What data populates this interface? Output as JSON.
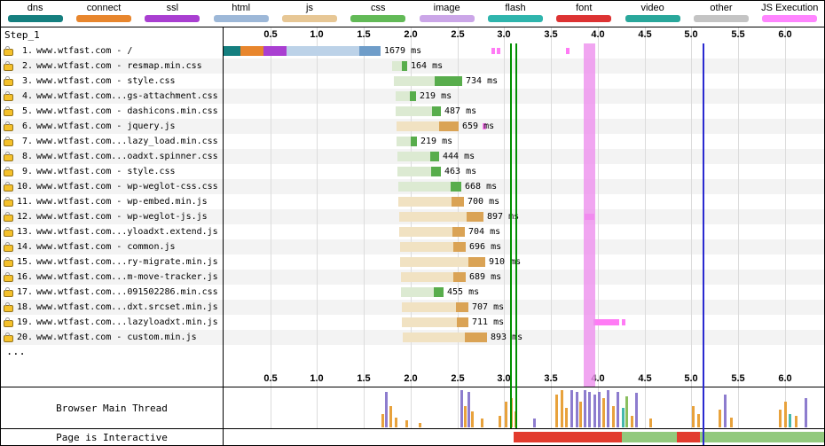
{
  "legend": {
    "items": [
      {
        "label": "dns",
        "color": "#157f7f"
      },
      {
        "label": "connect",
        "color": "#e8862d"
      },
      {
        "label": "ssl",
        "color": "#a93fd1"
      },
      {
        "label": "html",
        "color": "#9db8d8"
      },
      {
        "label": "js",
        "color": "#e7c795"
      },
      {
        "label": "css",
        "color": "#62ba57"
      },
      {
        "label": "image",
        "color": "#cba6e8"
      },
      {
        "label": "flash",
        "color": "#2fb5ad"
      },
      {
        "label": "font",
        "color": "#dd3333"
      },
      {
        "label": "video",
        "color": "#29a79b"
      },
      {
        "label": "other",
        "color": "#c4c4c4"
      },
      {
        "label": "JS Execution",
        "color": "#ff85ff"
      }
    ]
  },
  "step_label": "Step_1",
  "ellipsis_label": "...",
  "timescale_ticks": [
    "0.5",
    "1.0",
    "1.5",
    "2.0",
    "2.5",
    "3.0",
    "3.5",
    "4.0",
    "4.5",
    "5.0",
    "5.5",
    "6.0"
  ],
  "chart_data": {
    "type": "waterfall",
    "time_axis": {
      "unit": "seconds",
      "min": 0,
      "max": 6.42,
      "tick_interval": 0.5
    },
    "palette": {
      "dns": "#157f7f",
      "connect": "#e8862d",
      "ssl": "#a93fd1",
      "html_wait": "#bcd2e8",
      "html_dl": "#6f9dc9",
      "css_wait": "#dcead2",
      "css_dl": "#58ad4c",
      "js_wait": "#f1e2c2",
      "js_dl": "#daa355",
      "js_exec": "#ff7bf5"
    },
    "events": {
      "start_render_lines": [
        3.06,
        3.12
      ],
      "start_render_color": "#008f00",
      "dom_content_loaded_band": {
        "start": 3.85,
        "end": 3.97,
        "color": "#ee90ee"
      },
      "on_load_line": 5.12,
      "on_load_color": "#2a2ad0"
    },
    "requests": [
      {
        "num": "1.",
        "url": "www.wtfast.com - /",
        "duration": "1679 ms",
        "end": 1.679,
        "segments": [
          [
            0.0,
            0.18,
            "dns"
          ],
          [
            0.18,
            0.43,
            "connect"
          ],
          [
            0.43,
            0.67,
            "ssl"
          ],
          [
            0.67,
            1.45,
            "html_wait"
          ],
          [
            1.45,
            1.679,
            "html_dl"
          ]
        ],
        "js_exec": [
          [
            2.86,
            2.9
          ],
          [
            2.92,
            2.96
          ],
          [
            3.66,
            3.7
          ]
        ]
      },
      {
        "num": "2.",
        "url": "www.wtfast.com - resmap.min.css",
        "duration": "164 ms",
        "type": "css",
        "start": 1.8,
        "dl": 1.91,
        "end": 1.964
      },
      {
        "num": "3.",
        "url": "www.wtfast.com - style.css",
        "duration": "734 ms",
        "type": "css",
        "start": 1.82,
        "dl": 2.26,
        "end": 2.554
      },
      {
        "num": "4.",
        "url": "www.wtfast.com...gs-attachment.css",
        "duration": "219 ms",
        "type": "css",
        "start": 1.84,
        "dl": 1.99,
        "end": 2.059
      },
      {
        "num": "5.",
        "url": "www.wtfast.com - dashicons.min.css",
        "duration": "487 ms",
        "type": "css",
        "start": 1.84,
        "dl": 2.23,
        "end": 2.327
      },
      {
        "num": "6.",
        "url": "www.wtfast.com - jquery.js",
        "duration": "659 ms",
        "type": "js",
        "start": 1.85,
        "dl": 2.3,
        "end": 2.509,
        "js_exec": [
          [
            2.77,
            2.81
          ]
        ]
      },
      {
        "num": "7.",
        "url": "www.wtfast.com...lazy_load.min.css",
        "duration": "219 ms",
        "type": "css",
        "start": 1.85,
        "dl": 2.0,
        "end": 2.069
      },
      {
        "num": "8.",
        "url": "www.wtfast.com...oadxt.spinner.css",
        "duration": "444 ms",
        "type": "css",
        "start": 1.86,
        "dl": 2.21,
        "end": 2.304
      },
      {
        "num": "9.",
        "url": "www.wtfast.com - style.css",
        "duration": "463 ms",
        "type": "css",
        "start": 1.86,
        "dl": 2.22,
        "end": 2.323
      },
      {
        "num": "10.",
        "url": "www.wtfast.com - wp-weglot-css.css",
        "duration": "668 ms",
        "type": "css",
        "start": 1.87,
        "dl": 2.43,
        "end": 2.538
      },
      {
        "num": "11.",
        "url": "www.wtfast.com - wp-embed.min.js",
        "duration": "700 ms",
        "type": "js",
        "start": 1.87,
        "dl": 2.44,
        "end": 2.57
      },
      {
        "num": "12.",
        "url": "www.wtfast.com - wp-weglot-js.js",
        "duration": "897 ms",
        "type": "js",
        "start": 1.88,
        "dl": 2.6,
        "end": 2.777,
        "js_exec": [
          [
            3.86,
            3.96
          ]
        ]
      },
      {
        "num": "13.",
        "url": "www.wtfast.com...yloadxt.extend.js",
        "duration": "704 ms",
        "type": "js",
        "start": 1.88,
        "dl": 2.45,
        "end": 2.584
      },
      {
        "num": "14.",
        "url": "www.wtfast.com - common.js",
        "duration": "696 ms",
        "type": "js",
        "start": 1.89,
        "dl": 2.46,
        "end": 2.586
      },
      {
        "num": "15.",
        "url": "www.wtfast.com...ry-migrate.min.js",
        "duration": "910 ms",
        "type": "js",
        "start": 1.89,
        "dl": 2.62,
        "end": 2.8
      },
      {
        "num": "16.",
        "url": "www.wtfast.com...m-move-tracker.js",
        "duration": "689 ms",
        "type": "js",
        "start": 1.9,
        "dl": 2.46,
        "end": 2.589
      },
      {
        "num": "17.",
        "url": "www.wtfast.com...091502286.min.css",
        "duration": "455 ms",
        "type": "css",
        "start": 1.9,
        "dl": 2.25,
        "end": 2.355
      },
      {
        "num": "18.",
        "url": "www.wtfast.com...dxt.srcset.min.js",
        "duration": "707 ms",
        "type": "js",
        "start": 1.91,
        "dl": 2.48,
        "end": 2.617
      },
      {
        "num": "19.",
        "url": "www.wtfast.com...lazyloadxt.min.js",
        "duration": "711 ms",
        "type": "js",
        "start": 1.91,
        "dl": 2.49,
        "end": 2.621,
        "js_exec": [
          [
            3.95,
            4.23
          ],
          [
            4.26,
            4.3
          ]
        ]
      },
      {
        "num": "20.",
        "url": "www.wtfast.com - custom.min.js",
        "duration": "893 ms",
        "type": "js",
        "start": 1.92,
        "dl": 2.58,
        "end": 2.813
      }
    ],
    "mt_colors": {
      "o": "#e8a23c",
      "p": "#8d7cce",
      "t": "#45b8ac",
      "g": "#8abf5e"
    },
    "main_thread": {
      "label": "Browser Main Thread",
      "bars": [
        [
          1.7,
          0.35,
          "o"
        ],
        [
          1.74,
          0.9,
          "p"
        ],
        [
          1.78,
          0.55,
          "o"
        ],
        [
          1.84,
          0.25,
          "o"
        ],
        [
          1.95,
          0.18,
          "o"
        ],
        [
          2.1,
          0.12,
          "o"
        ],
        [
          2.54,
          0.95,
          "p"
        ],
        [
          2.58,
          0.55,
          "o"
        ],
        [
          2.62,
          0.92,
          "p"
        ],
        [
          2.66,
          0.4,
          "o"
        ],
        [
          2.76,
          0.22,
          "o"
        ],
        [
          2.95,
          0.3,
          "o"
        ],
        [
          3.02,
          0.65,
          "o"
        ],
        [
          3.07,
          0.75,
          "o"
        ],
        [
          3.12,
          0.4,
          "o"
        ],
        [
          3.32,
          0.22,
          "p"
        ],
        [
          3.56,
          0.85,
          "o"
        ],
        [
          3.61,
          0.95,
          "o"
        ],
        [
          3.66,
          0.5,
          "o"
        ],
        [
          3.72,
          0.95,
          "p"
        ],
        [
          3.77,
          0.9,
          "p"
        ],
        [
          3.81,
          0.65,
          "o"
        ],
        [
          3.86,
          0.95,
          "p"
        ],
        [
          3.91,
          0.9,
          "p"
        ],
        [
          3.96,
          0.85,
          "p"
        ],
        [
          4.01,
          0.92,
          "p"
        ],
        [
          4.06,
          0.75,
          "o"
        ],
        [
          4.11,
          0.95,
          "p"
        ],
        [
          4.16,
          0.55,
          "o"
        ],
        [
          4.21,
          0.9,
          "p"
        ],
        [
          4.27,
          0.5,
          "t"
        ],
        [
          4.31,
          0.8,
          "g"
        ],
        [
          4.36,
          0.3,
          "o"
        ],
        [
          4.41,
          0.88,
          "p"
        ],
        [
          4.56,
          0.22,
          "o"
        ],
        [
          5.02,
          0.55,
          "o"
        ],
        [
          5.07,
          0.35,
          "o"
        ],
        [
          5.3,
          0.45,
          "o"
        ],
        [
          5.36,
          0.85,
          "p"
        ],
        [
          5.42,
          0.25,
          "o"
        ],
        [
          5.95,
          0.45,
          "o"
        ],
        [
          6.0,
          0.65,
          "o"
        ],
        [
          6.05,
          0.35,
          "t"
        ],
        [
          6.12,
          0.3,
          "o"
        ],
        [
          6.22,
          0.75,
          "p"
        ]
      ]
    },
    "ia_colors": {
      "blocked": "#e23b2e",
      "interactive": "#92c97d"
    },
    "interactive": {
      "label": "Page is Interactive",
      "segments": [
        [
          3.1,
          4.26,
          "blocked"
        ],
        [
          4.26,
          4.85,
          "interactive"
        ],
        [
          4.85,
          5.09,
          "blocked"
        ],
        [
          5.09,
          6.42,
          "interactive"
        ]
      ]
    }
  }
}
